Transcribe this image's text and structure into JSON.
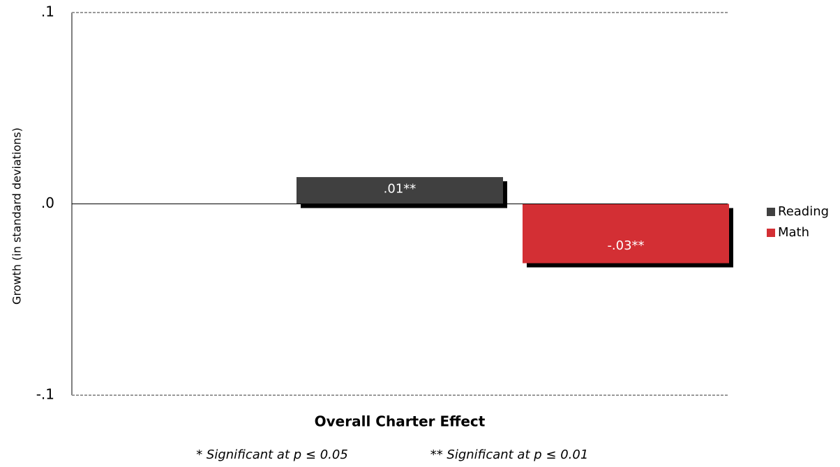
{
  "chart_data": {
    "type": "bar",
    "categories": [
      "Overall Charter Effect"
    ],
    "series": [
      {
        "name": "Reading",
        "color": "#404040",
        "values": [
          0.014
        ],
        "value_labels": [
          ".01**"
        ]
      },
      {
        "name": "Math",
        "color": "#d32f34",
        "values": [
          -0.031
        ],
        "value_labels": [
          "-.03**"
        ]
      }
    ],
    "y_label": "Growth (in standard deviations)",
    "ylim": [
      -0.1,
      0.1
    ],
    "yticks": [
      {
        "value": -0.1,
        "label": "-.1"
      },
      {
        "value": 0,
        "label": ".0"
      },
      {
        "value": 0.1,
        "label": ".1"
      }
    ],
    "grid": true,
    "legend": "right",
    "notes": [
      "* Significant at p ≤ 0.05",
      "** Significant at p ≤ 0.01"
    ]
  }
}
